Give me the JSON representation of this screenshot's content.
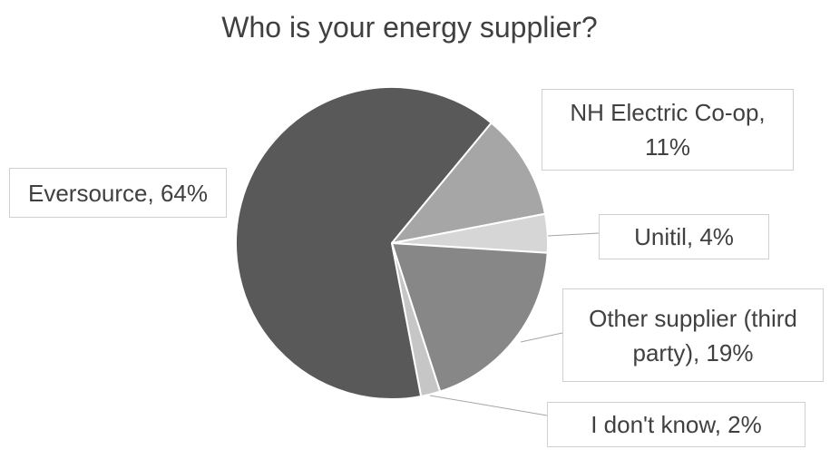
{
  "chart_data": {
    "type": "pie",
    "title": "Who is your energy supplier?",
    "slices": [
      {
        "label": "Eversource, 64%",
        "value": 64,
        "color": "#595959"
      },
      {
        "label": "NH Electric Co-op, 11%",
        "value": 11,
        "color": "#a6a6a6"
      },
      {
        "label": "Unitil, 4%",
        "value": 4,
        "color": "#d6d6d6"
      },
      {
        "label": "Other supplier (third party), 19%",
        "value": 19,
        "color": "#878787"
      },
      {
        "label": "I don't know, 2%",
        "value": 2,
        "color": "#c6c6c6"
      }
    ]
  }
}
